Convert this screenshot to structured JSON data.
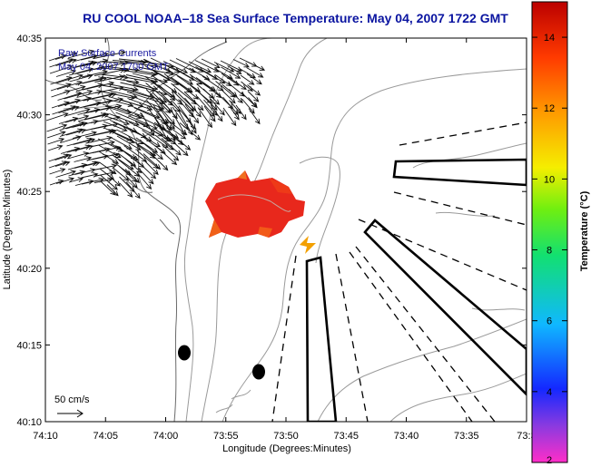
{
  "title": "RU COOL  NOAA–18  Sea Surface Temperature:  May 04, 2007 1722 GMT",
  "inset": {
    "line1": "Raw Surface Currents",
    "line2": "May 04, 2007 1700 GMT"
  },
  "scale_label": "50 cm/s",
  "chart_data": {
    "type": "heatmap",
    "title": "RU COOL  NOAA–18  Sea Surface Temperature:  May 04, 2007 1722 GMT",
    "xlabel": "Longitude (Degrees:Minutes)",
    "ylabel": "Latitude (Degrees:Minutes)",
    "xlim_minutes": [
      -10,
      30
    ],
    "ylim_minutes": [
      10,
      35
    ],
    "x_ticks": [
      {
        "value": -10,
        "label": "74:10"
      },
      {
        "value": -5,
        "label": "74:05"
      },
      {
        "value": 0,
        "label": "74:00"
      },
      {
        "value": 5,
        "label": "73:55"
      },
      {
        "value": 10,
        "label": "73:50"
      },
      {
        "value": 15,
        "label": "73:45"
      },
      {
        "value": 20,
        "label": "73:40"
      },
      {
        "value": 25,
        "label": "73:35"
      },
      {
        "value": 30,
        "label": "73:3"
      }
    ],
    "y_ticks": [
      {
        "value": 10,
        "label": "40:10"
      },
      {
        "value": 15,
        "label": "40:15"
      },
      {
        "value": 20,
        "label": "40:20"
      },
      {
        "value": 25,
        "label": "40:25"
      },
      {
        "value": 30,
        "label": "40:30"
      },
      {
        "value": 35,
        "label": "40:35"
      }
    ],
    "colorbar": {
      "label": "Temperature (°C)",
      "min": 2,
      "max": 15,
      "ticks": [
        2,
        4,
        6,
        8,
        10,
        12,
        14
      ]
    },
    "sst_patch": {
      "value_range_c": [
        13.2,
        14.2
      ],
      "typical_c": 13.8
    },
    "colors": {
      "title": "#0a14a0",
      "inset_text": "#1a1aa0",
      "sst_warm": "#e8281c",
      "sst_orange": "#f06018"
    }
  }
}
